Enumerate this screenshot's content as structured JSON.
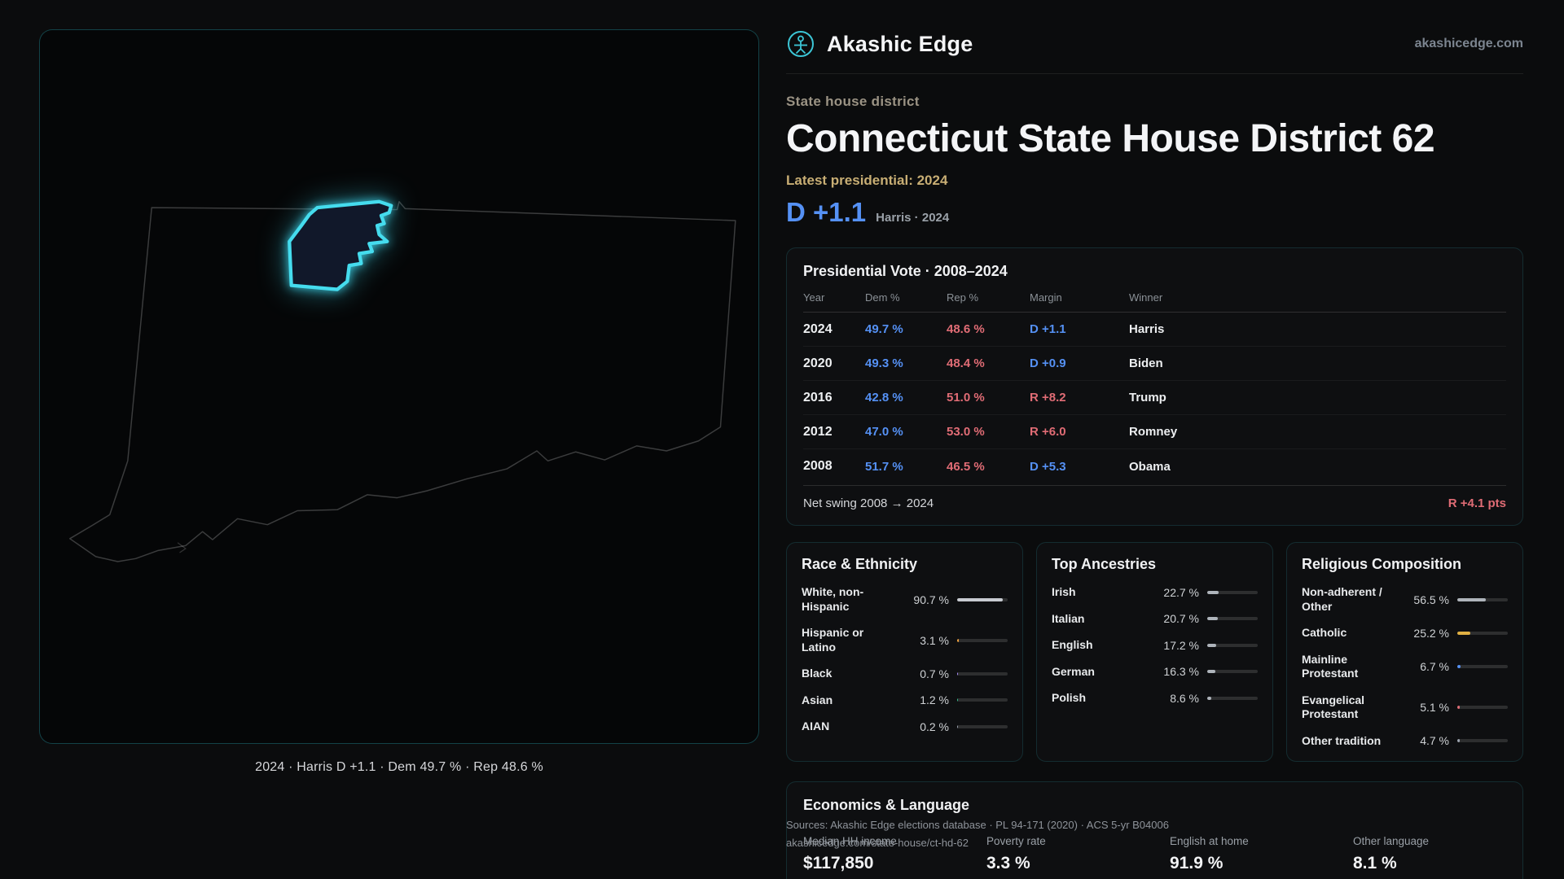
{
  "header": {
    "brand": "Akashic Edge",
    "logo_icon": "vitruvian-figure-icon",
    "site": "akashicedge.com",
    "kicker": "State house district",
    "title": "Connecticut State House District 62",
    "latest_label": "Latest presidential: 2024",
    "margin": "D +1.1",
    "margin_sub": "Harris · 2024"
  },
  "map": {
    "caption": "2024 · Harris D +1.1 · Dem 49.7 % · Rep 48.6 %"
  },
  "vote_table": {
    "title": "Presidential Vote · 2008–2024",
    "columns": [
      "Year",
      "Dem %",
      "Rep %",
      "Margin",
      "Winner"
    ],
    "rows": [
      {
        "year": "2024",
        "dem": "49.7 %",
        "rep": "48.6 %",
        "margin": "D +1.1",
        "margin_party": "D",
        "winner": "Harris"
      },
      {
        "year": "2020",
        "dem": "49.3 %",
        "rep": "48.4 %",
        "margin": "D +0.9",
        "margin_party": "D",
        "winner": "Biden"
      },
      {
        "year": "2016",
        "dem": "42.8 %",
        "rep": "51.0 %",
        "margin": "R +8.2",
        "margin_party": "R",
        "winner": "Trump"
      },
      {
        "year": "2012",
        "dem": "47.0 %",
        "rep": "53.0 %",
        "margin": "R +6.0",
        "margin_party": "R",
        "winner": "Romney"
      },
      {
        "year": "2008",
        "dem": "51.7 %",
        "rep": "46.5 %",
        "margin": "D +5.3",
        "margin_party": "D",
        "winner": "Obama"
      }
    ],
    "net_swing_label": "Net swing 2008 → 2024",
    "net_swing_value": "R +4.1 pts"
  },
  "race": {
    "title": "Race & Ethnicity",
    "rows": [
      {
        "label": "White, non-Hispanic",
        "value": "90.7 %",
        "pct": 90.7,
        "color": "#c7cbd1"
      },
      {
        "label": "Hispanic or Latino",
        "value": "3.1 %",
        "pct": 3.1,
        "color": "#f0a13e"
      },
      {
        "label": "Black",
        "value": "0.7 %",
        "pct": 0.7,
        "color": "#a78bfa"
      },
      {
        "label": "Asian",
        "value": "1.2 %",
        "pct": 1.2,
        "color": "#35c08f"
      },
      {
        "label": "AIAN",
        "value": "0.2 %",
        "pct": 0.2,
        "color": "#9ca3af"
      }
    ]
  },
  "ancestries": {
    "title": "Top Ancestries",
    "rows": [
      {
        "label": "Irish",
        "value": "22.7 %",
        "pct": 22.7,
        "color": "#aeb4bb"
      },
      {
        "label": "Italian",
        "value": "20.7 %",
        "pct": 20.7,
        "color": "#aeb4bb"
      },
      {
        "label": "English",
        "value": "17.2 %",
        "pct": 17.2,
        "color": "#aeb4bb"
      },
      {
        "label": "German",
        "value": "16.3 %",
        "pct": 16.3,
        "color": "#aeb4bb"
      },
      {
        "label": "Polish",
        "value": "8.6 %",
        "pct": 8.6,
        "color": "#aeb4bb"
      }
    ]
  },
  "religion": {
    "title": "Religious Composition",
    "rows": [
      {
        "label": "Non-adherent / Other",
        "value": "56.5 %",
        "pct": 56.5,
        "color": "#aeb4bb"
      },
      {
        "label": "Catholic",
        "value": "25.2 %",
        "pct": 25.2,
        "color": "#e0b043"
      },
      {
        "label": "Mainline Protestant",
        "value": "6.7 %",
        "pct": 6.7,
        "color": "#5591f5"
      },
      {
        "label": "Evangelical Protestant",
        "value": "5.1 %",
        "pct": 5.1,
        "color": "#e06c75"
      },
      {
        "label": "Other tradition",
        "value": "4.7 %",
        "pct": 4.7,
        "color": "#9ca3af"
      }
    ]
  },
  "economics": {
    "title": "Economics & Language",
    "stats": [
      {
        "label": "Median HH income",
        "value": "$117,850"
      },
      {
        "label": "Poverty rate",
        "value": "3.3 %"
      },
      {
        "label": "English at home",
        "value": "91.9 %"
      },
      {
        "label": "Other language",
        "value": "8.1 %"
      }
    ]
  },
  "sources": {
    "line1": "Sources: Akashic Edge elections database · PL 94-171 (2020) · ACS 5-yr B04006",
    "line2": "akashicedge.com/state-house/ct-hd-62"
  },
  "colors": {
    "dem": "#5591f5",
    "rep": "#e06c75",
    "accent_teal": "#3cd0e0",
    "gold": "#c8ae74"
  }
}
